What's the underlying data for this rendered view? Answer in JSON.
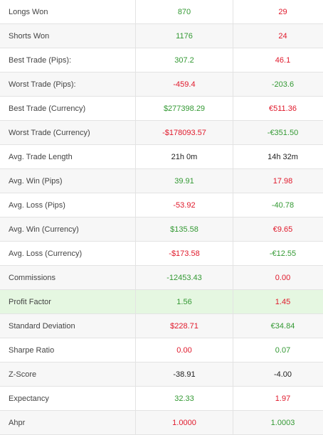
{
  "colors": {
    "positive": "#339933",
    "negative": "#e0192b",
    "neutral": "#222222",
    "highlight_row_bg": "#e5f7e1"
  },
  "rows": [
    {
      "label": "Longs Won",
      "a": "870",
      "a_color": "green",
      "b": "29",
      "b_color": "red"
    },
    {
      "label": "Shorts Won",
      "a": "1176",
      "a_color": "green",
      "b": "24",
      "b_color": "red"
    },
    {
      "label": "Best Trade (Pips):",
      "a": "307.2",
      "a_color": "green",
      "b": "46.1",
      "b_color": "red"
    },
    {
      "label": "Worst Trade (Pips):",
      "a": "-459.4",
      "a_color": "red",
      "b": "-203.6",
      "b_color": "green"
    },
    {
      "label": "Best Trade (Currency)",
      "a": "$277398.29",
      "a_color": "green",
      "b": "€511.36",
      "b_color": "red"
    },
    {
      "label": "Worst Trade (Currency)",
      "a": "-$178093.57",
      "a_color": "red",
      "b": "-€351.50",
      "b_color": "green"
    },
    {
      "label": "Avg. Trade Length",
      "a": "21h 0m",
      "a_color": "dark",
      "b": "14h 32m",
      "b_color": "dark"
    },
    {
      "label": "Avg. Win (Pips)",
      "a": "39.91",
      "a_color": "green",
      "b": "17.98",
      "b_color": "red"
    },
    {
      "label": "Avg. Loss (Pips)",
      "a": "-53.92",
      "a_color": "red",
      "b": "-40.78",
      "b_color": "green"
    },
    {
      "label": "Avg. Win (Currency)",
      "a": "$135.58",
      "a_color": "green",
      "b": "€9.65",
      "b_color": "red"
    },
    {
      "label": "Avg. Loss (Currency)",
      "a": "-$173.58",
      "a_color": "red",
      "b": "-€12.55",
      "b_color": "green"
    },
    {
      "label": "Commissions",
      "a": "-12453.43",
      "a_color": "green",
      "b": "0.00",
      "b_color": "red"
    },
    {
      "label": "Profit Factor",
      "a": "1.56",
      "a_color": "green",
      "b": "1.45",
      "b_color": "red",
      "highlight": true
    },
    {
      "label": "Standard Deviation",
      "a": "$228.71",
      "a_color": "red",
      "b": "€34.84",
      "b_color": "green"
    },
    {
      "label": "Sharpe Ratio",
      "a": "0.00",
      "a_color": "red",
      "b": "0.07",
      "b_color": "green"
    },
    {
      "label": "Z-Score",
      "a": "-38.91",
      "a_color": "dark",
      "b": "-4.00",
      "b_color": "dark"
    },
    {
      "label": "Expectancy",
      "a": "32.33",
      "a_color": "green",
      "b": "1.97",
      "b_color": "red"
    },
    {
      "label": "Ahpr",
      "a": "1.0000",
      "a_color": "red",
      "b": "1.0003",
      "b_color": "green"
    }
  ]
}
